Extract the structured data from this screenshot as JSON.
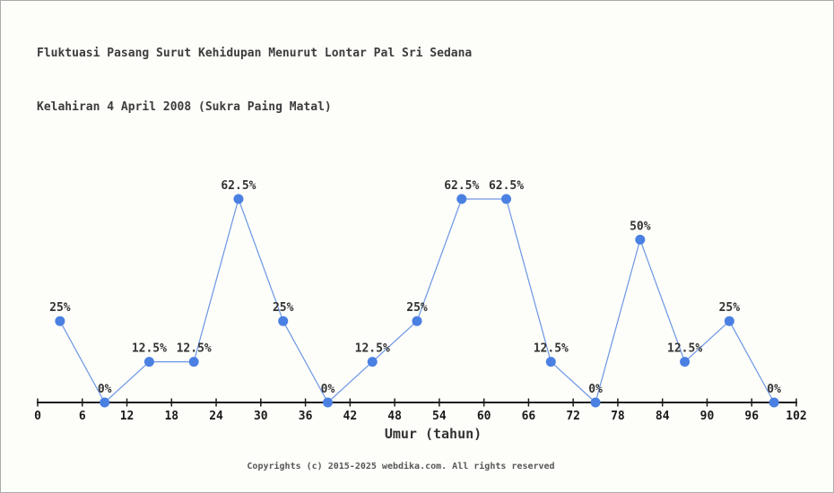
{
  "title": {
    "line1": "Fluktuasi Pasang Surut Kehidupan Menurut Lontar Pal Sri Sedana",
    "line2": "Kelahiran 4 April 2008 (Sukra Paing Matal)"
  },
  "footer": "Copyrights (c) 2015-2025 webdika.com. All rights reserved",
  "colors": {
    "background": "#fdfdfa",
    "border": "#ababab",
    "axis": "#1a1a1a",
    "tick_label": "#1a1a1a",
    "point_label": "#333333",
    "marker": "#4a80e2",
    "line": "#6b96e4",
    "title_text": "#3c3c3c",
    "footer_text": "#575757"
  },
  "chart_data": {
    "type": "line",
    "title": "Fluktuasi Pasang Surut Kehidupan Menurut Lontar Pal Sri Sedana Kelahiran 4 April 2008 (Sukra Paing Matal)",
    "xlabel": "Umur (tahun)",
    "ylabel": "",
    "x": [
      3,
      9,
      15,
      21,
      27,
      33,
      39,
      45,
      51,
      57,
      63,
      69,
      75,
      81,
      87,
      93,
      99
    ],
    "values": [
      25,
      0,
      12.5,
      12.5,
      62.5,
      25,
      0,
      12.5,
      25,
      62.5,
      62.5,
      12.5,
      0,
      50,
      12.5,
      25,
      0
    ],
    "point_labels": [
      "25%",
      "0%",
      "12.5%",
      "12.5%",
      "62.5%",
      "25%",
      "0%",
      "12.5%",
      "25%",
      "62.5%",
      "62.5%",
      "12.5%",
      "0%",
      "50%",
      "12.5%",
      "25%",
      "0%"
    ],
    "x_ticks": [
      0,
      6,
      12,
      18,
      24,
      30,
      36,
      42,
      48,
      54,
      60,
      66,
      72,
      78,
      84,
      90,
      96,
      102
    ],
    "xlim": [
      0,
      102
    ],
    "ylim": [
      0,
      100
    ],
    "grid": false,
    "legend": null,
    "y_axis_shown": false
  }
}
